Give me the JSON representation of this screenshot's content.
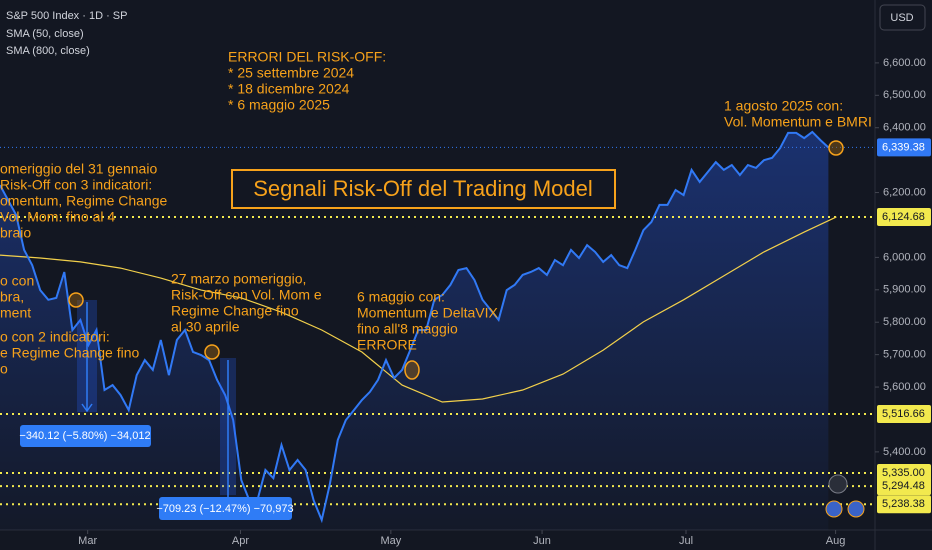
{
  "chart_data": {
    "type": "line",
    "title": "Segnali Risk-Off del Trading Model",
    "currency": "USD",
    "extra_legend": "SMA (800, close)",
    "xlim": [
      0,
      108.8
    ],
    "ylim": [
      5159,
      6794
    ],
    "grid": false,
    "xticks": [
      {
        "value": 10.9,
        "label": "Mar"
      },
      {
        "value": 29.9,
        "label": "Apr"
      },
      {
        "value": 48.6,
        "label": "May"
      },
      {
        "value": 67.4,
        "label": "Jun"
      },
      {
        "value": 85.3,
        "label": "Jul"
      },
      {
        "value": 103.9,
        "label": "Aug"
      }
    ],
    "yticks": [
      {
        "value": 5400,
        "label": "5,400.00"
      },
      {
        "value": 5600,
        "label": "5,600.00"
      },
      {
        "value": 5700,
        "label": "5,700.00"
      },
      {
        "value": 5800,
        "label": "5,800.00"
      },
      {
        "value": 5900,
        "label": "5,900.00"
      },
      {
        "value": 6000,
        "label": "6,000.00"
      },
      {
        "value": 6200,
        "label": "6,200.00"
      },
      {
        "value": 6400,
        "label": "6,400.00"
      },
      {
        "value": 6500,
        "label": "6,500.00"
      },
      {
        "value": 6600,
        "label": "6,600.00"
      }
    ],
    "series": [
      {
        "name": "S&P 500 Index · 1D · SP",
        "color": "#3179f5",
        "values": [
          6223,
          6177,
          6131,
          6023,
          5976,
          5899,
          5869,
          5875,
          5955,
          5776,
          5807,
          5730,
          5776,
          5591,
          5606,
          5575,
          5529,
          5637,
          5683,
          5653,
          5745,
          5637,
          5745,
          5776,
          5708,
          5699,
          5683,
          5622,
          5575,
          5498,
          5313,
          5251,
          5251,
          5344,
          5319,
          5421,
          5344,
          5375,
          5344,
          5251,
          5190,
          5298,
          5437,
          5498,
          5529,
          5560,
          5585,
          5622,
          5683,
          5628,
          5653,
          5714,
          5776,
          5776,
          5869,
          5884,
          5915,
          5961,
          5967,
          5930,
          5869,
          5838,
          5807,
          5899,
          5915,
          5946,
          5955,
          5967,
          5946,
          5992,
          5976,
          6023,
          5998,
          6038,
          6017,
          5986,
          6007,
          5976,
          5967,
          6023,
          6084,
          6109,
          6162,
          6162,
          6208,
          6192,
          6270,
          6233,
          6263,
          6294,
          6270,
          6285,
          6254,
          6285,
          6276,
          6300,
          6307,
          6337,
          6384,
          6384,
          6368,
          6387,
          6362,
          6339
        ]
      },
      {
        "name": "SMA (50, close)",
        "color": "#f2d04b",
        "x": [
          0,
          5,
          10,
          15,
          20,
          25,
          30,
          35,
          40,
          45,
          50,
          55,
          60,
          65,
          70,
          75,
          80,
          85,
          90,
          95,
          100,
          104
        ],
        "values": [
          6007,
          5998,
          5986,
          5967,
          5936,
          5899,
          5875,
          5831,
          5776,
          5708,
          5606,
          5554,
          5563,
          5591,
          5640,
          5714,
          5801,
          5869,
          5943,
          6017,
          6078,
          6125
        ]
      }
    ],
    "last_price": {
      "value": 6339.38,
      "label": "6,339.38"
    },
    "levels": [
      {
        "value": 6124.68,
        "label": "6,124.68"
      },
      {
        "value": 5516.66,
        "label": "5,516.66"
      },
      {
        "value": 5335.0,
        "label": "5,335.00"
      },
      {
        "value": 5294.48,
        "label": "5,294.48"
      },
      {
        "value": 5238.38,
        "label": "5,238.38"
      }
    ],
    "annotations": [
      {
        "lines": [
          "ERRORI DEL RISK-OFF:",
          "* 25 settembre 2024",
          "* 18 dicembre 2024",
          "*  6 maggio 2025"
        ]
      },
      {
        "lines": [
          "1 agosto 2025 con:",
          "Vol. Momentum e BMRI"
        ]
      },
      {
        "lines": [
          "omeriggio del 31 gennaio",
          "Risk-Off con 3 indicatori:",
          "omentum, Regime Change",
          "Vol. Mom: fino al 4",
          "braio"
        ]
      },
      {
        "lines": [
          "o con",
          "bra,",
          "ment",
          "o con 2 indicatori:",
          "e Regime Change fino",
          "o"
        ]
      },
      {
        "lines": [
          "27 marzo pomeriggio,",
          "Risk-Off con Vol. Mom e",
          "Regime Change fino",
          "al 30 aprile"
        ]
      },
      {
        "lines": [
          "6 maggio con:",
          "Momentum e DeltaVIX",
          "fino all'8 maggio",
          "ERRORE"
        ]
      }
    ],
    "measurements": [
      "−340.12 (−5.80%) −34,012",
      "−709.23 (−12.47%) −70,973"
    ]
  }
}
